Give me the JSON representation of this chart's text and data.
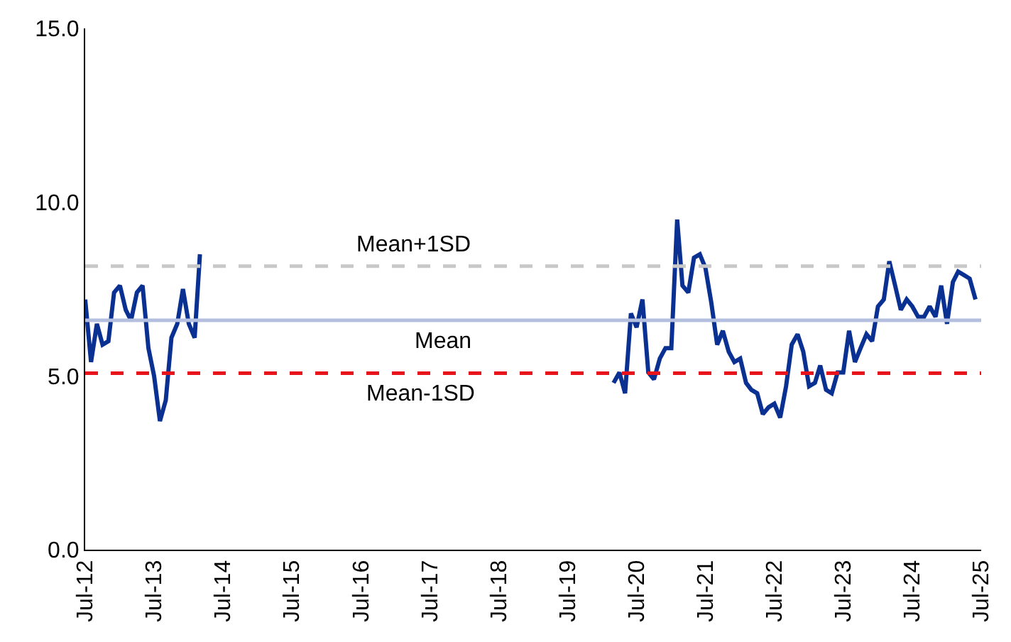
{
  "chart_data": {
    "type": "line",
    "xlim": [
      "2012-07",
      "2025-07"
    ],
    "ylim": [
      0,
      15
    ],
    "marker": "none",
    "line_style": "solid",
    "xticks": [
      {
        "value": "2012-07",
        "label": "Jul-12"
      },
      {
        "value": "2013-07",
        "label": "Jul-13"
      },
      {
        "value": "2014-07",
        "label": "Jul-14"
      },
      {
        "value": "2015-07",
        "label": "Jul-15"
      },
      {
        "value": "2016-07",
        "label": "Jul-16"
      },
      {
        "value": "2017-07",
        "label": "Jul-17"
      },
      {
        "value": "2018-07",
        "label": "Jul-18"
      },
      {
        "value": "2019-07",
        "label": "Jul-19"
      },
      {
        "value": "2020-07",
        "label": "Jul-20"
      },
      {
        "value": "2021-07",
        "label": "Jul-21"
      },
      {
        "value": "2022-07",
        "label": "Jul-22"
      },
      {
        "value": "2023-07",
        "label": "Jul-23"
      },
      {
        "value": "2024-07",
        "label": "Jul-24"
      },
      {
        "value": "2025-07",
        "label": "Jul-25"
      }
    ],
    "yticks": [
      {
        "value": 0,
        "label": "0.0"
      },
      {
        "value": 5,
        "label": "5.0"
      },
      {
        "value": 10,
        "label": "10.0"
      },
      {
        "value": 15,
        "label": "15.0"
      }
    ],
    "ref_lines": [
      {
        "axis": "y",
        "value": 8.16,
        "label": "Mean+1SD",
        "color": "#c8c8c8",
        "line_style": "dashed"
      },
      {
        "axis": "y",
        "value": 6.6,
        "label": "Mean",
        "color": "#b4bfe0",
        "line_style": "solid"
      },
      {
        "axis": "y",
        "value": 5.08,
        "label": "Mean-1SD",
        "color": "#e8141c",
        "line_style": "dashed"
      }
    ],
    "series": [
      {
        "color": "#0a3191",
        "x": [
          "2012-07",
          "2012-08",
          "2012-09",
          "2012-10",
          "2012-11",
          "2012-12",
          "2013-01",
          "2013-02",
          "2013-03",
          "2013-04",
          "2013-05",
          "2013-06",
          "2013-07",
          "2013-08",
          "2013-09",
          "2013-10",
          "2013-11",
          "2013-12",
          "2014-01",
          "2014-02",
          "2014-03",
          "2014-04",
          "2020-03",
          "2020-04",
          "2020-05",
          "2020-06",
          "2020-07",
          "2020-08",
          "2020-09",
          "2020-10",
          "2020-11",
          "2020-12",
          "2021-01",
          "2021-02",
          "2021-03",
          "2021-04",
          "2021-05",
          "2021-06",
          "2021-07",
          "2021-08",
          "2021-09",
          "2021-10",
          "2021-11",
          "2021-12",
          "2022-01",
          "2022-02",
          "2022-03",
          "2022-04",
          "2022-05",
          "2022-06",
          "2022-07",
          "2022-08",
          "2022-09",
          "2022-10",
          "2022-11",
          "2022-12",
          "2023-01",
          "2023-02",
          "2023-03",
          "2023-04",
          "2023-05",
          "2023-06",
          "2023-07",
          "2023-08",
          "2023-09",
          "2023-10",
          "2023-11",
          "2023-12",
          "2024-01",
          "2024-02",
          "2024-03",
          "2024-04",
          "2024-05",
          "2024-06",
          "2024-07",
          "2024-08",
          "2024-09",
          "2024-10",
          "2024-11",
          "2024-12",
          "2025-01",
          "2025-02",
          "2025-03",
          "2025-04",
          "2025-05",
          "2025-06"
        ],
        "values": [
          7.2,
          5.4,
          6.5,
          5.9,
          6.0,
          7.4,
          7.6,
          6.9,
          6.6,
          7.4,
          7.6,
          5.8,
          5.0,
          3.7,
          4.3,
          6.1,
          6.5,
          7.5,
          6.5,
          6.1,
          8.5,
          null,
          4.8,
          5.1,
          4.5,
          6.8,
          6.4,
          7.2,
          5.1,
          4.9,
          5.5,
          5.8,
          5.8,
          9.5,
          7.6,
          7.4,
          8.4,
          8.5,
          8.1,
          7.1,
          5.9,
          6.3,
          5.7,
          5.4,
          5.5,
          4.8,
          4.6,
          4.5,
          3.9,
          4.1,
          4.2,
          3.8,
          4.7,
          5.9,
          6.2,
          5.7,
          4.7,
          4.8,
          5.3,
          4.6,
          4.5,
          5.1,
          5.1,
          6.3,
          5.4,
          5.8,
          6.2,
          6.0,
          7.0,
          7.2,
          8.3,
          7.6,
          6.9,
          7.2,
          7.0,
          6.7,
          6.7,
          7.0,
          6.7,
          7.6,
          6.5,
          7.7,
          8.0,
          7.9,
          7.8,
          7.2
        ]
      }
    ]
  }
}
